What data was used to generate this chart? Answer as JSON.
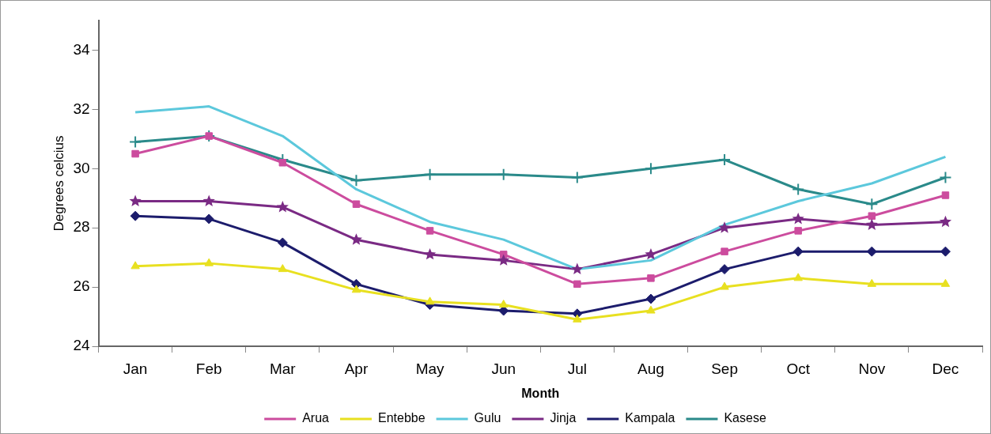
{
  "chart_data": {
    "type": "line",
    "xlabel": "Month",
    "ylabel": "Degrees celcius",
    "categories": [
      "Jan",
      "Feb",
      "Mar",
      "Apr",
      "May",
      "Jun",
      "Jul",
      "Aug",
      "Sep",
      "Oct",
      "Nov",
      "Dec"
    ],
    "ylim": [
      24,
      35
    ],
    "yticks": [
      24,
      26,
      28,
      30,
      32,
      34
    ],
    "grid": false,
    "legend": "bottom",
    "line_style": "solid",
    "series": [
      {
        "name": "Arua",
        "color": "#cc4c9e",
        "marker": "square",
        "values": [
          30.5,
          31.1,
          30.2,
          28.8,
          27.9,
          27.1,
          26.1,
          26.3,
          27.2,
          27.9,
          28.4,
          29.1
        ]
      },
      {
        "name": "Entebbe",
        "color": "#e8e020",
        "marker": "triangle",
        "values": [
          26.7,
          26.8,
          26.6,
          25.9,
          25.5,
          25.4,
          24.9,
          25.2,
          26.0,
          26.3,
          26.1,
          26.1
        ]
      },
      {
        "name": "Gulu",
        "color": "#5cc8dc",
        "marker": "none",
        "values": [
          31.9,
          32.1,
          31.1,
          29.3,
          28.2,
          27.6,
          26.6,
          26.9,
          28.1,
          28.9,
          29.5,
          30.4
        ]
      },
      {
        "name": "Jinja",
        "color": "#7a2a84",
        "marker": "star",
        "values": [
          28.9,
          28.9,
          28.7,
          27.6,
          27.1,
          26.9,
          26.6,
          27.1,
          28.0,
          28.3,
          28.1,
          28.2
        ]
      },
      {
        "name": "Kampala",
        "color": "#1c1c6c",
        "marker": "diamond",
        "values": [
          28.4,
          28.3,
          27.5,
          26.1,
          25.4,
          25.2,
          25.1,
          25.6,
          26.6,
          27.2,
          27.2,
          27.2
        ]
      },
      {
        "name": "Kasese",
        "color": "#2a8a8a",
        "marker": "cross",
        "values": [
          30.9,
          31.1,
          30.3,
          29.6,
          29.8,
          29.8,
          29.7,
          30.0,
          30.3,
          29.3,
          28.8,
          29.7
        ]
      }
    ]
  }
}
